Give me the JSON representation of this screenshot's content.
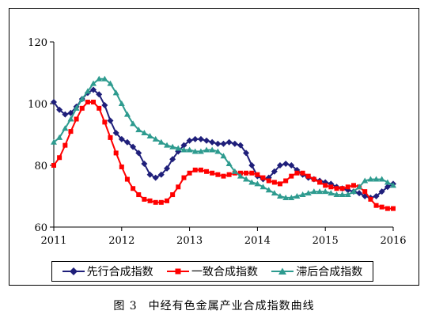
{
  "chart_data": {
    "type": "line",
    "title": "",
    "xlabel": "",
    "ylabel": "",
    "ylim": [
      60,
      120
    ],
    "yticks": [
      60,
      80,
      100,
      120
    ],
    "xlim": [
      2011,
      2016
    ],
    "xticks": [
      "2011",
      "2012",
      "2013",
      "2014",
      "2015",
      "2016"
    ],
    "grid": false,
    "legend_position": "bottom",
    "series": [
      {
        "name": "先行合成指数",
        "color": "#1f1f7a",
        "marker": "diamond",
        "x": [
          2011.0,
          2011.083,
          2011.167,
          2011.25,
          2011.333,
          2011.417,
          2011.5,
          2011.583,
          2011.667,
          2011.75,
          2011.833,
          2011.917,
          2012.0,
          2012.083,
          2012.167,
          2012.25,
          2012.333,
          2012.417,
          2012.5,
          2012.583,
          2012.667,
          2012.75,
          2012.833,
          2012.917,
          2013.0,
          2013.083,
          2013.167,
          2013.25,
          2013.333,
          2013.417,
          2013.5,
          2013.583,
          2013.667,
          2013.75,
          2013.833,
          2013.917,
          2014.0,
          2014.083,
          2014.167,
          2014.25,
          2014.333,
          2014.417,
          2014.5,
          2014.583,
          2014.667,
          2014.75,
          2014.833,
          2014.917,
          2015.0,
          2015.083,
          2015.167,
          2015.25,
          2015.333,
          2015.417,
          2015.5,
          2015.583,
          2015.667,
          2015.75,
          2015.833,
          2015.917,
          2016.0
        ],
        "values": [
          100.5,
          98.0,
          96.5,
          97.0,
          99.0,
          101.5,
          103.5,
          104.5,
          103.0,
          99.5,
          94.5,
          90.5,
          88.5,
          87.5,
          86.0,
          84.0,
          80.5,
          77.0,
          76.0,
          77.0,
          79.0,
          82.0,
          84.5,
          86.5,
          88.0,
          88.5,
          88.5,
          88.0,
          87.5,
          87.0,
          87.0,
          87.5,
          87.0,
          86.5,
          84.0,
          80.0,
          76.5,
          75.5,
          76.0,
          78.0,
          80.0,
          80.5,
          80.0,
          78.5,
          77.0,
          76.0,
          75.5,
          75.0,
          74.5,
          74.0,
          73.0,
          72.5,
          72.0,
          71.5,
          71.0,
          70.0,
          69.5,
          70.0,
          71.5,
          73.0,
          74.0
        ]
      },
      {
        "name": "一致合成指数",
        "color": "#ff0000",
        "marker": "square",
        "x": [
          2011.0,
          2011.083,
          2011.167,
          2011.25,
          2011.333,
          2011.417,
          2011.5,
          2011.583,
          2011.667,
          2011.75,
          2011.833,
          2011.917,
          2012.0,
          2012.083,
          2012.167,
          2012.25,
          2012.333,
          2012.417,
          2012.5,
          2012.583,
          2012.667,
          2012.75,
          2012.833,
          2012.917,
          2013.0,
          2013.083,
          2013.167,
          2013.25,
          2013.333,
          2013.417,
          2013.5,
          2013.583,
          2013.667,
          2013.75,
          2013.833,
          2013.917,
          2014.0,
          2014.083,
          2014.167,
          2014.25,
          2014.333,
          2014.417,
          2014.5,
          2014.583,
          2014.667,
          2014.75,
          2014.833,
          2014.917,
          2015.0,
          2015.083,
          2015.167,
          2015.25,
          2015.333,
          2015.417,
          2015.5,
          2015.583,
          2015.667,
          2015.75,
          2015.833,
          2015.917,
          2016.0
        ],
        "values": [
          80.0,
          82.5,
          86.5,
          91.0,
          95.0,
          98.5,
          100.5,
          100.5,
          98.5,
          94.0,
          89.0,
          84.0,
          79.5,
          75.5,
          72.5,
          70.5,
          69.0,
          68.5,
          68.0,
          68.0,
          68.5,
          70.5,
          73.0,
          76.0,
          77.5,
          78.5,
          78.5,
          78.0,
          77.5,
          77.0,
          76.5,
          77.0,
          77.5,
          77.5,
          77.5,
          77.5,
          77.0,
          76.0,
          75.0,
          74.5,
          74.0,
          75.0,
          76.5,
          77.5,
          77.5,
          76.5,
          75.5,
          74.5,
          73.5,
          73.0,
          72.5,
          72.5,
          73.0,
          73.5,
          73.0,
          71.5,
          69.0,
          67.0,
          66.5,
          66.0,
          66.0
        ]
      },
      {
        "name": "滞后合成指数",
        "color": "#2e9b8f",
        "marker": "triangle",
        "x": [
          2011.0,
          2011.083,
          2011.167,
          2011.25,
          2011.333,
          2011.417,
          2011.5,
          2011.583,
          2011.667,
          2011.75,
          2011.833,
          2011.917,
          2012.0,
          2012.083,
          2012.167,
          2012.25,
          2012.333,
          2012.417,
          2012.5,
          2012.583,
          2012.667,
          2012.75,
          2012.833,
          2012.917,
          2013.0,
          2013.083,
          2013.167,
          2013.25,
          2013.333,
          2013.417,
          2013.5,
          2013.583,
          2013.667,
          2013.75,
          2013.833,
          2013.917,
          2014.0,
          2014.083,
          2014.167,
          2014.25,
          2014.333,
          2014.417,
          2014.5,
          2014.583,
          2014.667,
          2014.75,
          2014.833,
          2014.917,
          2015.0,
          2015.083,
          2015.167,
          2015.25,
          2015.333,
          2015.417,
          2015.5,
          2015.583,
          2015.667,
          2015.75,
          2015.833,
          2015.917,
          2016.0
        ],
        "values": [
          87.5,
          89.0,
          92.0,
          95.0,
          98.5,
          101.5,
          104.0,
          106.5,
          108.0,
          108.0,
          106.5,
          103.5,
          100.0,
          96.5,
          93.5,
          91.5,
          90.5,
          89.5,
          88.5,
          87.5,
          86.5,
          86.0,
          85.5,
          85.0,
          85.0,
          84.5,
          84.5,
          85.0,
          85.0,
          84.5,
          83.0,
          80.5,
          78.0,
          76.5,
          75.5,
          74.5,
          74.0,
          73.0,
          72.0,
          71.0,
          70.0,
          69.5,
          69.5,
          70.0,
          70.5,
          71.0,
          71.5,
          71.5,
          71.5,
          71.0,
          70.5,
          70.5,
          70.5,
          71.5,
          73.0,
          75.0,
          75.5,
          75.5,
          75.5,
          74.5,
          73.5
        ]
      }
    ]
  },
  "caption": {
    "figure_number": "图 3",
    "text": "中经有色金属产业合成指数曲线"
  }
}
